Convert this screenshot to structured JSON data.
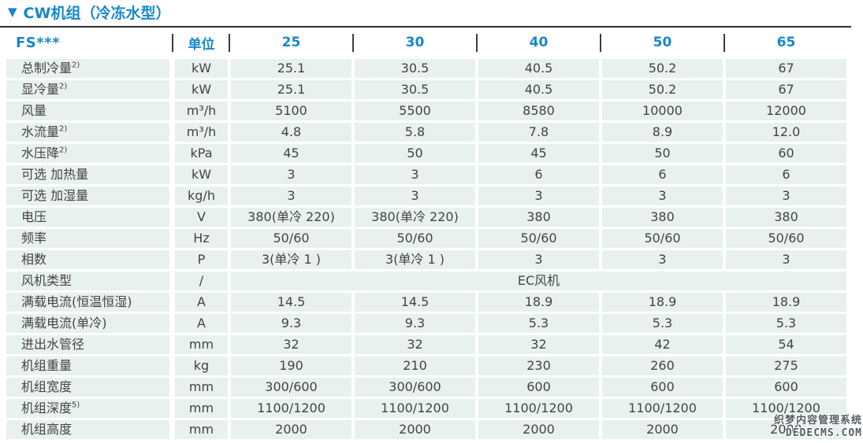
{
  "title": {
    "icon": "▼",
    "text": "CW机组（冷冻水型）"
  },
  "colors": {
    "accent_blue": "#1787c9",
    "cell_background": "#e9f1ef",
    "cell_text": "#434343",
    "top_border": "#2f2f2f",
    "separator_bar": "#3c3c3c"
  },
  "table": {
    "header": {
      "model": "FS***",
      "unit": "单位",
      "sizes": [
        "25",
        "30",
        "40",
        "50",
        "65"
      ]
    },
    "rows": [
      {
        "label": "总制冷量",
        "sup": "2)",
        "unit": "kW",
        "values": [
          "25.1",
          "30.5",
          "40.5",
          "50.2",
          "67"
        ]
      },
      {
        "label": "显冷量",
        "sup": "2)",
        "unit": "kW",
        "values": [
          "25.1",
          "30.5",
          "40.5",
          "50.2",
          "67"
        ]
      },
      {
        "label": "风量",
        "sup": "",
        "unit": "m³/h",
        "values": [
          "5100",
          "5500",
          "8580",
          "10000",
          "12000"
        ]
      },
      {
        "label": "水流量",
        "sup": "2)",
        "unit": "m³/h",
        "values": [
          "4.8",
          "5.8",
          "7.8",
          "8.9",
          "12.0"
        ]
      },
      {
        "label": "水压降",
        "sup": "2)",
        "unit": "kPa",
        "values": [
          "45",
          "50",
          "45",
          "50",
          "60"
        ]
      },
      {
        "label": "可选 加热量",
        "sup": "",
        "unit": "kW",
        "values": [
          "3",
          "3",
          "6",
          "6",
          "6"
        ]
      },
      {
        "label": "可选 加湿量",
        "sup": "",
        "unit": "kg/h",
        "values": [
          "3",
          "3",
          "3",
          "3",
          "3"
        ]
      },
      {
        "label": "电压",
        "sup": "",
        "unit": "V",
        "values": [
          "380(单冷 220)",
          "380(单冷 220)",
          "380",
          "380",
          "380"
        ]
      },
      {
        "label": "频率",
        "sup": "",
        "unit": "Hz",
        "values": [
          "50/60",
          "50/60",
          "50/60",
          "50/60",
          "50/60"
        ]
      },
      {
        "label": "相数",
        "sup": "",
        "unit": "P",
        "values": [
          "3(单冷 1 )",
          "3(单冷 1 )",
          "3",
          "3",
          "3"
        ]
      },
      {
        "label": "风机类型",
        "sup": "",
        "unit": "/",
        "merged": "EC风机"
      },
      {
        "label": "满载电流(恒温恒湿)",
        "sup": "",
        "unit": "A",
        "values": [
          "14.5",
          "14.5",
          "18.9",
          "18.9",
          "18.9"
        ]
      },
      {
        "label": "满载电流(单冷)",
        "sup": "",
        "unit": "A",
        "values": [
          "9.3",
          "9.3",
          "5.3",
          "5.3",
          "5.3"
        ]
      },
      {
        "label": "进出水管径",
        "sup": "",
        "unit": "mm",
        "values": [
          "32",
          "32",
          "32",
          "42",
          "54"
        ]
      },
      {
        "label": "机组重量",
        "sup": "",
        "unit": "kg",
        "values": [
          "190",
          "210",
          "230",
          "260",
          "275"
        ]
      },
      {
        "label": "机组宽度",
        "sup": "",
        "unit": "mm",
        "values": [
          "300/600",
          "300/600",
          "600",
          "600",
          "600"
        ]
      },
      {
        "label": "机组深度",
        "sup": "5)",
        "unit": "mm",
        "values": [
          "1100/1200",
          "1100/1200",
          "1100/1200",
          "1100/1200",
          "1100/1200"
        ]
      },
      {
        "label": "机组高度",
        "sup": "",
        "unit": "mm",
        "values": [
          "2000",
          "2000",
          "2000",
          "2000",
          "2000"
        ]
      }
    ]
  },
  "watermark": {
    "line1": "织梦内容管理系统",
    "line2": "DEDECMS.COM"
  }
}
